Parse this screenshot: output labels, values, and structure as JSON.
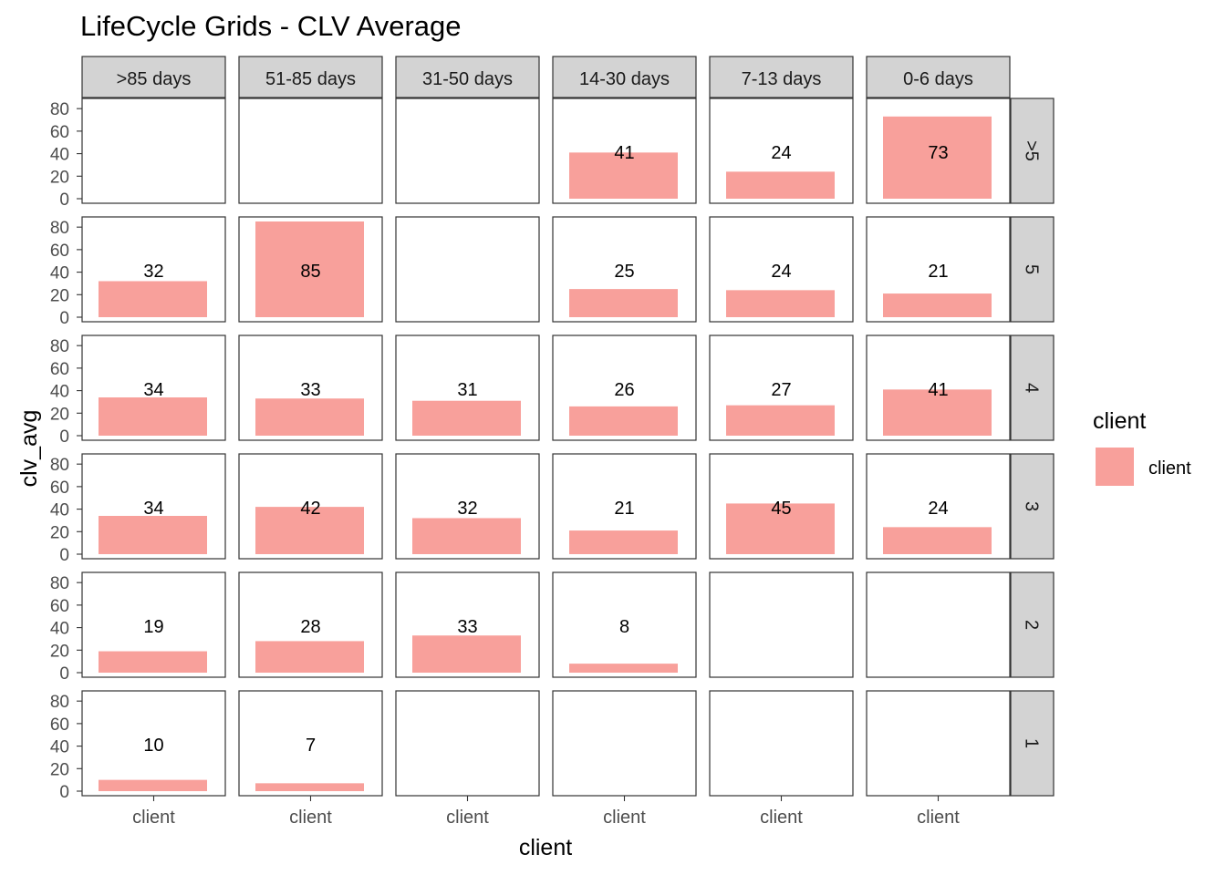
{
  "chart_data": {
    "type": "bar",
    "title": "LifeCycle Grids - CLV Average",
    "xlabel": "client",
    "ylabel": "clv_avg",
    "ylim": [
      0,
      85
    ],
    "yticks": [
      0,
      20,
      40,
      60,
      80
    ],
    "col_facets": [
      ">85 days",
      "51-85 days",
      "31-50 days",
      "14-30 days",
      "7-13 days",
      "0-6 days"
    ],
    "row_facets": [
      ">5",
      "5",
      "4",
      "3",
      "2",
      "1"
    ],
    "x_category": "client",
    "legend": {
      "title": "client",
      "items": [
        "client"
      ],
      "position": "right"
    },
    "bar_color": "#f8a09b",
    "grid": false,
    "values": [
      [
        null,
        null,
        null,
        41,
        24,
        73
      ],
      [
        32,
        85,
        null,
        25,
        24,
        21
      ],
      [
        34,
        33,
        31,
        26,
        27,
        41
      ],
      [
        34,
        42,
        32,
        21,
        45,
        24
      ],
      [
        19,
        28,
        33,
        8,
        null,
        null
      ],
      [
        10,
        7,
        null,
        null,
        null,
        null
      ]
    ]
  }
}
